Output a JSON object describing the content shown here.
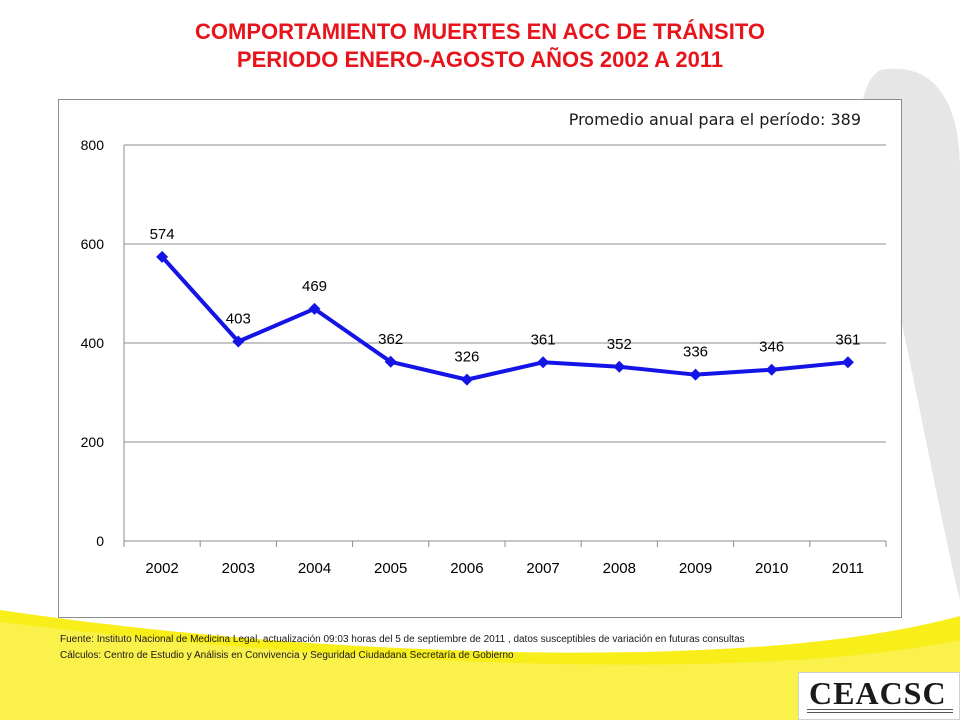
{
  "title_line1": "COMPORTAMIENTO MUERTES EN ACC DE TRÁNSITO",
  "title_line2": "PERIODO ENERO-AGOSTO AÑOS 2002 A 2011",
  "annotation": "Promedio  anual para el período: 389",
  "source_line1": "Fuente: Instituto Nacional de Medicina Legal, actualización  09:03  horas del  5 de  septiembre de 2011 , datos susceptibles de variación en futuras consultas",
  "source_line2": "Cálculos:  Centro de Estudio  y Análisis en Convivencia y Seguridad Ciudadana Secretaría de Gobierno",
  "logo_text": "CEACSC",
  "colors": {
    "title": "#e8141c",
    "line": "#1414e6",
    "swoosh": "#f7ee1a"
  },
  "chart_data": {
    "type": "line",
    "categories": [
      "2002",
      "2003",
      "2004",
      "2005",
      "2006",
      "2007",
      "2008",
      "2009",
      "2010",
      "2011"
    ],
    "series": [
      {
        "values": [
          574,
          403,
          469,
          362,
          326,
          361,
          352,
          336,
          346,
          361
        ]
      }
    ],
    "ylim": [
      0,
      800
    ],
    "yticks": [
      0,
      200,
      400,
      600,
      800
    ],
    "grid": true,
    "legend": "none",
    "marker": "diamond"
  }
}
